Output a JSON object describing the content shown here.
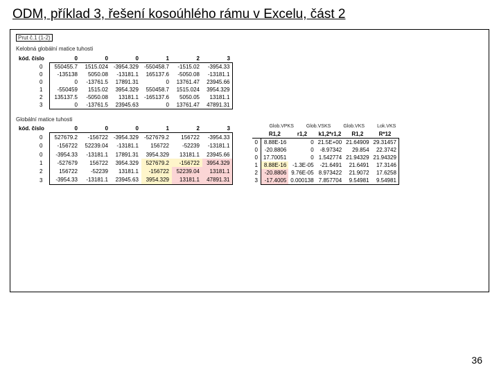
{
  "title": "ODM, příklad 3, řešení kosoúhlého rámu v Excelu, část 2",
  "top_box": "Prut č.1 (1-2)",
  "label_matrix1_desc": "Kelobná globální matice tuhosti",
  "label_kod": "kód. číslo",
  "matrix1": {
    "headers": [
      "0",
      "0",
      "0",
      "1",
      "2",
      "3"
    ],
    "kod": [
      "0",
      "0",
      "0",
      "1",
      "2",
      "3"
    ],
    "rows": [
      [
        "550455.7",
        "1515.024",
        "-3954.329",
        "-550458.7",
        "-1515.02",
        "-3954.33"
      ],
      [
        "-135138",
        "5050.08",
        "-13181.1",
        "165137.6",
        "-5050.08",
        "-13181.1"
      ],
      [
        "0",
        "-13761.5",
        "17891.31",
        "0",
        "13761.47",
        "23945.66"
      ],
      [
        "-550459",
        "1515.02",
        "3954.329",
        "550458.7",
        "1515.024",
        "3954.329"
      ],
      [
        "135137.5",
        "-5050.08",
        "13181.1",
        "-165137.6",
        "5050.05",
        "13181.1"
      ],
      [
        "0",
        "-13761.5",
        "23945.63",
        "0",
        "13761.47",
        "47891.31"
      ]
    ]
  },
  "label_matrix2_desc": "Globální matice tuhosti",
  "matrix2": {
    "headers": [
      "0",
      "0",
      "0",
      "1",
      "2",
      "3"
    ],
    "kod": [
      "0",
      "0",
      "0",
      "1",
      "2",
      "3"
    ],
    "rows": [
      [
        "527679.2",
        "-156722",
        "-3954.329",
        "-527679.2",
        "156722",
        "-3954.33"
      ],
      [
        "-156722",
        "52239.04",
        "-13181.1",
        "156722",
        "-52239",
        "-13181.1"
      ],
      [
        "-3954.33",
        "-13181.1",
        "17891.31",
        "3954.329",
        "13181.1",
        "23945.66"
      ],
      [
        "-527679",
        "156722",
        "3954.329",
        "527679.2",
        "-156722",
        "3954.329"
      ],
      [
        "156722",
        "-52239",
        "13181.1",
        "-156722",
        "52239.04",
        "13181.1"
      ],
      [
        "-3954.33",
        "-13181.1",
        "23945.63",
        "3954.329",
        "13181.1",
        "47891.31"
      ]
    ],
    "hl": {
      "yellow": [
        [
          3,
          3
        ],
        [
          3,
          4
        ],
        [
          4,
          3
        ],
        [
          5,
          3
        ]
      ],
      "pink": [
        [
          3,
          5
        ],
        [
          4,
          4
        ],
        [
          4,
          5
        ],
        [
          5,
          4
        ],
        [
          5,
          5
        ]
      ]
    }
  },
  "right": {
    "row_headers": [
      "Glob.VPKS",
      "Glob.VSKS",
      "Glob.VKS",
      "Lok.VKS"
    ],
    "col_headers": [
      "R1,2",
      "r1,2",
      "k1,2*r1,2",
      "R1,2",
      "R*12"
    ],
    "kod": [
      "0",
      "0",
      "0",
      "1",
      "2",
      "3"
    ],
    "cols": [
      [
        "8.88E-16",
        "-20.8806",
        "17.70051",
        "8.88E-16",
        "-20.8806",
        "-17.4005"
      ],
      [
        "0",
        "0",
        "0",
        "-1.3E-05",
        "9.76E-05",
        "0.000138"
      ],
      [
        "21.5E+00",
        "-8.97342",
        "1.542774",
        "-21.6491",
        "8.973422",
        "7.857704"
      ],
      [
        "21.64909",
        "29.854",
        "21.94329",
        "21.6491",
        "21.9072",
        "9.54981"
      ],
      [
        "29.31457",
        "22.3742",
        "21.94329",
        "17.3146",
        "17.6258",
        "9.54981"
      ]
    ],
    "hl": {
      "yellow": [
        [
          3,
          0
        ]
      ],
      "pink": [
        [
          4,
          0
        ],
        [
          5,
          0
        ]
      ]
    }
  },
  "page": "36",
  "colors": {
    "yellow": "#fef5ca",
    "pink": "#fbd5d5"
  }
}
